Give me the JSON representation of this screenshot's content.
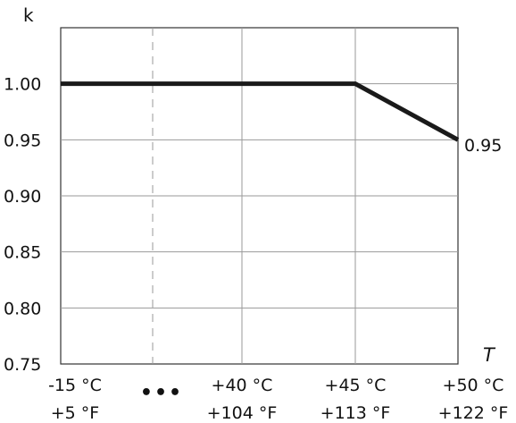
{
  "chart_data": {
    "type": "line",
    "title": "",
    "ylabel": "k",
    "xlabel": "T",
    "ylim": [
      0.75,
      1.05
    ],
    "yticks": [
      {
        "value": 1.0,
        "label": "1.00"
      },
      {
        "value": 0.95,
        "label": "0.95"
      },
      {
        "value": 0.9,
        "label": "0.90"
      },
      {
        "value": 0.85,
        "label": "0.85"
      },
      {
        "value": 0.8,
        "label": "0.80"
      },
      {
        "value": 0.75,
        "label": "0.75"
      }
    ],
    "x_categories": [
      {
        "celsius": "-15 °C",
        "fahrenheit": "+5 °F"
      },
      {
        "celsius": "...",
        "fahrenheit": ""
      },
      {
        "celsius": "+40 °C",
        "fahrenheit": "+104 °F"
      },
      {
        "celsius": "+45 °C",
        "fahrenheit": "+113 °F"
      },
      {
        "celsius": "+50 °C",
        "fahrenheit": "+122 °F"
      }
    ],
    "series": [
      {
        "x_index": [
          0,
          3,
          4
        ],
        "y": [
          1.0,
          1.0,
          0.95
        ]
      }
    ],
    "end_label": "0.95",
    "grid": true,
    "axis_break_after_index": 0
  }
}
